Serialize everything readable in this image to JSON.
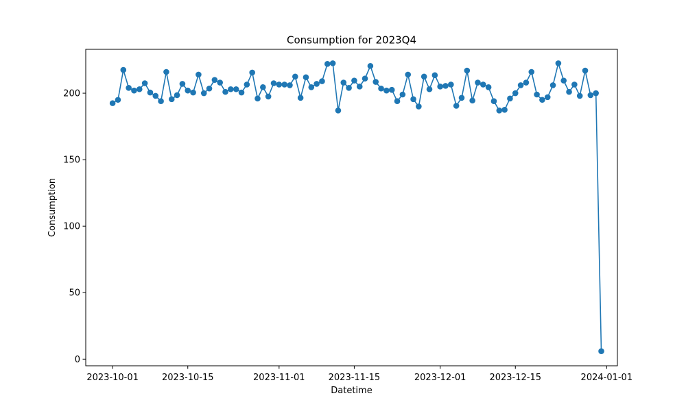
{
  "chart_data": {
    "type": "line",
    "title": "Consumption for 2023Q4",
    "xlabel": "Datetime",
    "ylabel": "Consumption",
    "color": "#1f77b4",
    "xlim": [
      "2023-09-26",
      "2024-01-03"
    ],
    "ylim": [
      -5,
      233
    ],
    "grid": false,
    "x_ticks": [
      "2023-10-01",
      "2023-10-15",
      "2023-11-01",
      "2023-11-15",
      "2023-12-01",
      "2023-12-15",
      "2024-01-01"
    ],
    "y_ticks": [
      0,
      50,
      100,
      150,
      200
    ],
    "series": [
      {
        "x": [
          "2023-10-01",
          "2023-10-02",
          "2023-10-03",
          "2023-10-04",
          "2023-10-05",
          "2023-10-06",
          "2023-10-07",
          "2023-10-08",
          "2023-10-09",
          "2023-10-10",
          "2023-10-11",
          "2023-10-12",
          "2023-10-13",
          "2023-10-14",
          "2023-10-15",
          "2023-10-16",
          "2023-10-17",
          "2023-10-18",
          "2023-10-19",
          "2023-10-20",
          "2023-10-21",
          "2023-10-22",
          "2023-10-23",
          "2023-10-24",
          "2023-10-25",
          "2023-10-26",
          "2023-10-27",
          "2023-10-28",
          "2023-10-29",
          "2023-10-30",
          "2023-10-31",
          "2023-11-01",
          "2023-11-02",
          "2023-11-03",
          "2023-11-04",
          "2023-11-05",
          "2023-11-06",
          "2023-11-07",
          "2023-11-08",
          "2023-11-09",
          "2023-11-10",
          "2023-11-11",
          "2023-11-12",
          "2023-11-13",
          "2023-11-14",
          "2023-11-15",
          "2023-11-16",
          "2023-11-17",
          "2023-11-18",
          "2023-11-19",
          "2023-11-20",
          "2023-11-21",
          "2023-11-22",
          "2023-11-23",
          "2023-11-24",
          "2023-11-25",
          "2023-11-26",
          "2023-11-27",
          "2023-11-28",
          "2023-11-29",
          "2023-11-30",
          "2023-12-01",
          "2023-12-02",
          "2023-12-03",
          "2023-12-04",
          "2023-12-05",
          "2023-12-06",
          "2023-12-07",
          "2023-12-08",
          "2023-12-09",
          "2023-12-10",
          "2023-12-11",
          "2023-12-12",
          "2023-12-13",
          "2023-12-14",
          "2023-12-15",
          "2023-12-16",
          "2023-12-17",
          "2023-12-18",
          "2023-12-19",
          "2023-12-20",
          "2023-12-21",
          "2023-12-22",
          "2023-12-23",
          "2023-12-24",
          "2023-12-25",
          "2023-12-26",
          "2023-12-27",
          "2023-12-28",
          "2023-12-29",
          "2023-12-30",
          "2023-12-31"
        ],
        "y": [
          192.5,
          195,
          217.5,
          204,
          202,
          203,
          207.5,
          200.5,
          198,
          194,
          216,
          195.5,
          198.5,
          207,
          202,
          200.5,
          214,
          200,
          203.5,
          210,
          208,
          201,
          203,
          203,
          200.5,
          206.5,
          215.5,
          196,
          204.5,
          197.5,
          207.5,
          206.5,
          206.5,
          206,
          212.5,
          196.5,
          212,
          204.5,
          207,
          209,
          222,
          222.5,
          187,
          208,
          204,
          209.5,
          205,
          211,
          220.5,
          208.5,
          203.5,
          202,
          202.5,
          194,
          199,
          214,
          195.5,
          190,
          212.5,
          203,
          213.5,
          205,
          205.5,
          206.5,
          190.5,
          196.5,
          217,
          194.5,
          208,
          206.5,
          204.5,
          194,
          187,
          187.5,
          196,
          200,
          206,
          208,
          216,
          199,
          195,
          197,
          206,
          222.5,
          209.5,
          201,
          206.5,
          198,
          217,
          198.5,
          200,
          6
        ]
      }
    ]
  }
}
